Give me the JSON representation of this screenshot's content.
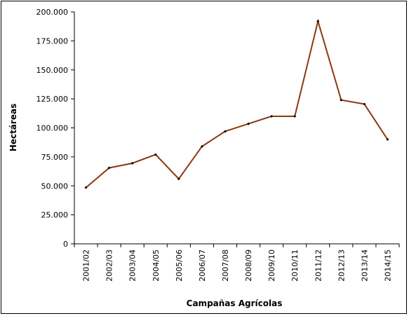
{
  "chart_data": {
    "type": "line",
    "title": "",
    "xlabel": "Campañas Agrícolas",
    "ylabel": "Hectáreas",
    "ylim": [
      0,
      200000
    ],
    "yticks": [
      0,
      25000,
      50000,
      75000,
      100000,
      125000,
      150000,
      175000,
      200000
    ],
    "ytick_labels": [
      "0",
      "25.000",
      "50.000",
      "75.000",
      "100.000",
      "125.000",
      "150.000",
      "175.000",
      "200.000"
    ],
    "grid": false,
    "legend": "none",
    "categories": [
      "2001/02",
      "2002/03",
      "2003/04",
      "2004/05",
      "2005/06",
      "2006/07",
      "2007/08",
      "2008/09",
      "2009/10",
      "2010/11",
      "2011/12",
      "2012/13",
      "2013/14",
      "2014/15"
    ],
    "series": [
      {
        "values": [
          48500,
          65500,
          69500,
          77000,
          56000,
          84000,
          97000,
          103500,
          110000,
          110000,
          192000,
          124000,
          120500,
          90000
        ],
        "line_color": "#8B3A0F",
        "marker_color": "#000000"
      }
    ]
  }
}
